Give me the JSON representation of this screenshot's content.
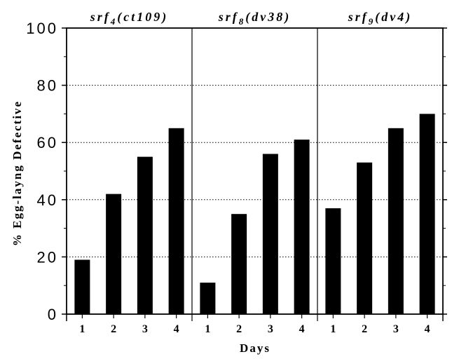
{
  "chart_data": {
    "type": "bar",
    "ylabel": "% Egg-layng Defective",
    "xlabel": "Days",
    "ylim": [
      0,
      100
    ],
    "yticks": [
      0,
      20,
      40,
      60,
      80,
      100
    ],
    "categories": [
      "1",
      "2",
      "3",
      "4"
    ],
    "bar_color": "#000000",
    "grid": "dotted horizontal at 20, 40, 60, 80; solid vertical panel separators",
    "panels": [
      {
        "title": {
          "prefix": "srf",
          "subscript": "4",
          "suffix": "(ct109)"
        },
        "values": [
          19,
          42,
          55,
          65
        ]
      },
      {
        "title": {
          "prefix": "srf",
          "subscript": "8",
          "suffix": "(dv38)"
        },
        "values": [
          11,
          35,
          56,
          61
        ]
      },
      {
        "title": {
          "prefix": "srf",
          "subscript": "9",
          "suffix": "(dv4)"
        },
        "values": [
          37,
          53,
          65,
          70
        ]
      }
    ]
  }
}
